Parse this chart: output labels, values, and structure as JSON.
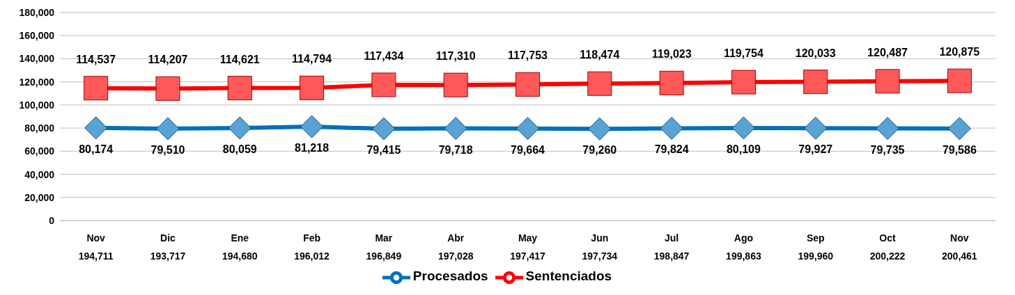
{
  "chart_data": {
    "type": "line",
    "categories": [
      "Nov",
      "Dic",
      "Ene",
      "Feb",
      "Mar",
      "Abr",
      "May",
      "Jun",
      "Jul",
      "Ago",
      "Sep",
      "Oct",
      "Nov"
    ],
    "series": [
      {
        "name": "Procesados",
        "color": "#0070c0",
        "marker": "diamond",
        "values": [
          80174,
          79510,
          80059,
          81218,
          79415,
          79718,
          79664,
          79260,
          79824,
          80109,
          79927,
          79735,
          79586
        ],
        "value_labels": [
          "80,174",
          "79,510",
          "80,059",
          "81,218",
          "79,415",
          "79,718",
          "79,664",
          "79,260",
          "79,824",
          "80,109",
          "79,927",
          "79,735",
          "79,586"
        ]
      },
      {
        "name": "Sentenciados",
        "color": "#ff0000",
        "marker": "square",
        "values": [
          114537,
          114207,
          114621,
          114794,
          117434,
          117310,
          117753,
          118474,
          119023,
          119754,
          120033,
          120487,
          120875
        ],
        "value_labels": [
          "114,537",
          "114,207",
          "114,621",
          "114,794",
          "117,434",
          "117,310",
          "117,753",
          "118,474",
          "119,023",
          "119,754",
          "120,033",
          "120,487",
          "120,875"
        ]
      }
    ],
    "totals": [
      "194,711",
      "193,717",
      "194,680",
      "196,012",
      "196,849",
      "197,028",
      "197,417",
      "197,734",
      "198,847",
      "199,863",
      "199,960",
      "200,222",
      "200,461"
    ],
    "ylim": [
      0,
      180000
    ],
    "yticks": [
      0,
      {
        "value": 20000,
        "label": "20,000"
      },
      {
        "value": 40000,
        "label": "40,000"
      },
      {
        "value": 60000,
        "label": "60,000"
      },
      {
        "value": 80000,
        "label": "80,000"
      },
      {
        "value": 100000,
        "label": "100,000"
      },
      {
        "value": 120000,
        "label": "120,000"
      },
      {
        "value": 140000,
        "label": "140,000"
      },
      {
        "value": 160000,
        "label": "160,000"
      },
      {
        "value": 180000,
        "label": "180,000"
      }
    ],
    "grid": "y",
    "legend": "bottom"
  }
}
